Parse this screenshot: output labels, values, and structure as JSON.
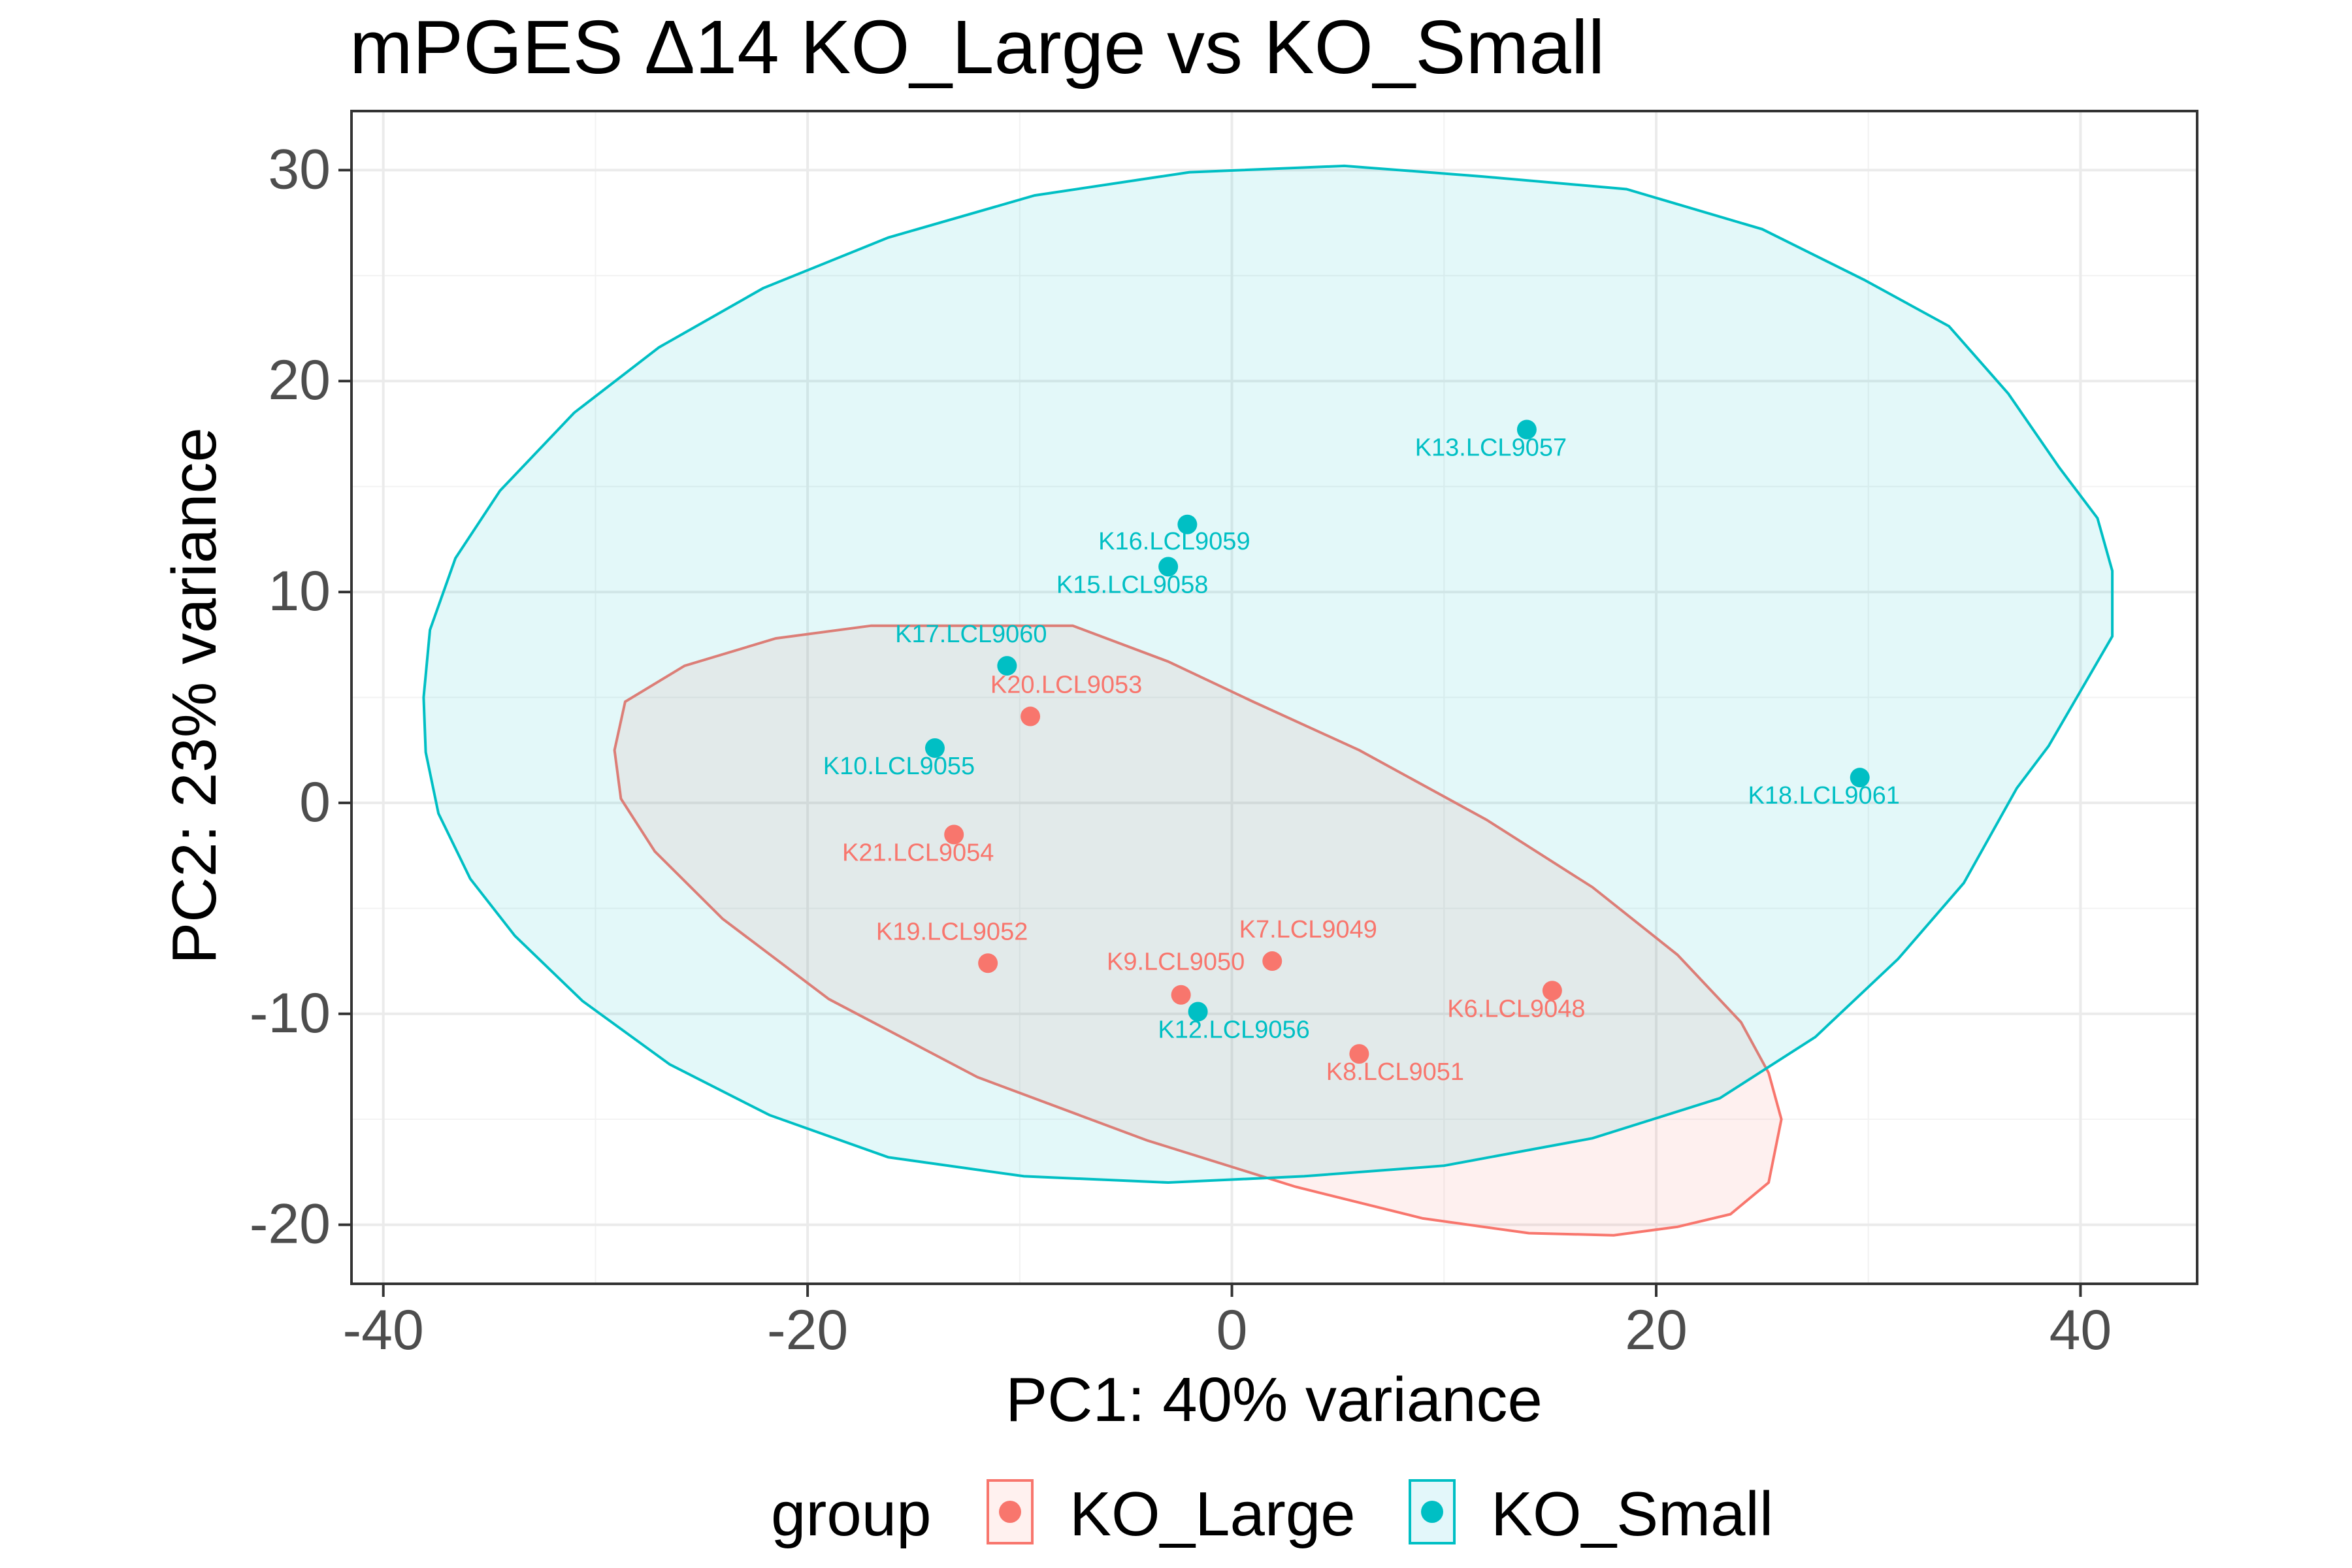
{
  "chart_data": {
    "type": "scatter",
    "title": "mPGES Δ14 KO_Large vs KO_Small",
    "xlabel": "PC1: 40% variance",
    "ylabel": "PC2: 23% variance",
    "xlim": [
      -41.5,
      45.5
    ],
    "ylim": [
      -22.8,
      32.8
    ],
    "xticks": [
      -40,
      -20,
      0,
      20,
      40
    ],
    "yticks": [
      -20,
      -10,
      0,
      10,
      20,
      30
    ],
    "xtick_labels": [
      "-40",
      "-20",
      "0",
      "20",
      "40"
    ],
    "ytick_labels": [
      "-20",
      "-10",
      "0",
      "10",
      "20",
      "30"
    ],
    "grid": true,
    "legend": {
      "title": "group",
      "position": "bottom",
      "entries": [
        "KO_Large",
        "KO_Small"
      ]
    },
    "colors": {
      "KO_Large": "#F8766D",
      "KO_Small": "#00BFC4"
    },
    "series": [
      {
        "name": "KO_Large",
        "color": "#F8766D",
        "points": [
          {
            "label": "K20.LCL9053",
            "x": -9.5,
            "y": 4.1
          },
          {
            "label": "K21.LCL9054",
            "x": -13.1,
            "y": -1.5
          },
          {
            "label": "K19.LCL9052",
            "x": -11.5,
            "y": -7.6
          },
          {
            "label": "K7.LCL9049",
            "x": 1.9,
            "y": -7.5
          },
          {
            "label": "K9.LCL9050",
            "x": -2.4,
            "y": -9.1
          },
          {
            "label": "K6.LCL9048",
            "x": 15.1,
            "y": -8.9
          },
          {
            "label": "K8.LCL9051",
            "x": 6.0,
            "y": -11.9
          }
        ]
      },
      {
        "name": "KO_Small",
        "color": "#00BFC4",
        "points": [
          {
            "label": "K13.LCL9057",
            "x": 13.9,
            "y": 17.7
          },
          {
            "label": "K16.LCL9059",
            "x": -2.1,
            "y": 13.2
          },
          {
            "label": "K15.LCL9058",
            "x": -3.0,
            "y": 11.2
          },
          {
            "label": "K17.LCL9060",
            "x": -10.6,
            "y": 6.5
          },
          {
            "label": "K10.LCL9055",
            "x": -14.0,
            "y": 2.6
          },
          {
            "label": "K18.LCL9061",
            "x": 29.6,
            "y": 1.2
          },
          {
            "label": "K12.LCL9056",
            "x": -1.6,
            "y": -9.9
          }
        ]
      }
    ],
    "ellipses": [
      {
        "group": "KO_Large",
        "points": [
          [
            -7.5,
            8.4
          ],
          [
            -17.0,
            8.4
          ],
          [
            -21.5,
            7.8
          ],
          [
            -25.8,
            6.5
          ],
          [
            -28.6,
            4.8
          ],
          [
            -29.1,
            2.5
          ],
          [
            -28.8,
            0.2
          ],
          [
            -27.2,
            -2.3
          ],
          [
            -24.0,
            -5.5
          ],
          [
            -19.0,
            -9.3
          ],
          [
            -12.0,
            -13.0
          ],
          [
            -4.0,
            -16.0
          ],
          [
            3.0,
            -18.2
          ],
          [
            9.0,
            -19.7
          ],
          [
            14.0,
            -20.4
          ],
          [
            18.0,
            -20.5
          ],
          [
            21.0,
            -20.1
          ],
          [
            23.5,
            -19.5
          ],
          [
            25.3,
            -18.0
          ],
          [
            25.9,
            -15.0
          ],
          [
            25.3,
            -12.8
          ],
          [
            24.0,
            -10.4
          ],
          [
            21.0,
            -7.2
          ],
          [
            17.0,
            -4.0
          ],
          [
            12.0,
            -0.8
          ],
          [
            6.0,
            2.5
          ],
          [
            1.0,
            4.8
          ],
          [
            -3.0,
            6.7
          ]
        ]
      },
      {
        "group": "KO_Small",
        "points": [
          [
            5.3,
            30.2
          ],
          [
            -2.0,
            29.9
          ],
          [
            -9.3,
            28.8
          ],
          [
            -16.2,
            26.8
          ],
          [
            -22.1,
            24.4
          ],
          [
            -27.0,
            21.6
          ],
          [
            -31.0,
            18.5
          ],
          [
            -34.5,
            14.8
          ],
          [
            -36.6,
            11.6
          ],
          [
            -37.8,
            8.2
          ],
          [
            -38.1,
            5.0
          ],
          [
            -38.0,
            2.4
          ],
          [
            -37.4,
            -0.5
          ],
          [
            -35.9,
            -3.6
          ],
          [
            -33.8,
            -6.3
          ],
          [
            -30.6,
            -9.4
          ],
          [
            -26.5,
            -12.4
          ],
          [
            -21.8,
            -14.8
          ],
          [
            -16.2,
            -16.8
          ],
          [
            -9.8,
            -17.7
          ],
          [
            -3.0,
            -18.0
          ],
          [
            3.4,
            -17.7
          ],
          [
            10.0,
            -17.2
          ],
          [
            17.0,
            -15.9
          ],
          [
            23.0,
            -14.0
          ],
          [
            27.5,
            -11.1
          ],
          [
            31.4,
            -7.4
          ],
          [
            34.5,
            -3.8
          ],
          [
            37.0,
            0.7
          ],
          [
            38.5,
            2.7
          ],
          [
            41.5,
            7.9
          ],
          [
            41.5,
            11.0
          ],
          [
            40.8,
            13.5
          ],
          [
            39.0,
            15.9
          ],
          [
            36.6,
            19.4
          ],
          [
            33.8,
            22.6
          ],
          [
            29.8,
            24.8
          ],
          [
            25.0,
            27.2
          ],
          [
            18.6,
            29.1
          ],
          [
            11.8,
            29.7
          ]
        ]
      }
    ]
  }
}
